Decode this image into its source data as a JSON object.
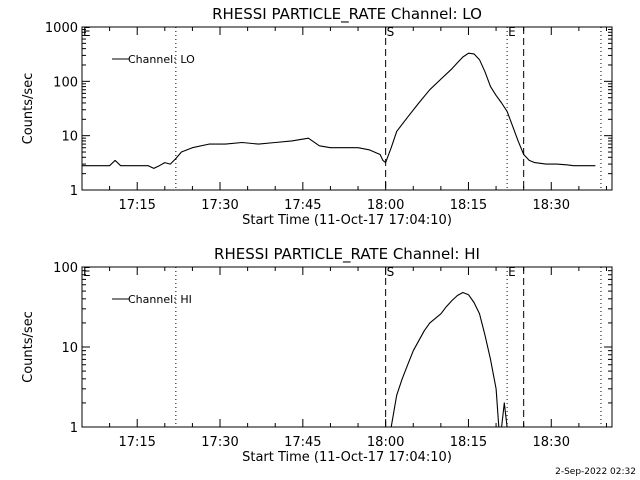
{
  "footer": {
    "timestamp": "2-Sep-2022 02:32"
  },
  "chart_data": [
    {
      "type": "line",
      "title": "RHESSI PARTICLE_RATE Channel: LO",
      "xlabel": "Start Time (11-Oct-17 17:04:10)",
      "ylabel": "Counts/sec",
      "xlim": [
        "17:05",
        "18:41"
      ],
      "ylim": [
        1,
        1000
      ],
      "yscale": "log",
      "xticks": [
        "17:15",
        "17:30",
        "17:45",
        "18:00",
        "18:15",
        "18:30"
      ],
      "yticks": [
        "1",
        "10",
        "100",
        "1000"
      ],
      "legend": {
        "position": "top-left",
        "entries": [
          "Channel: LO"
        ]
      },
      "markers": [
        {
          "label": "E",
          "time": "17:05"
        },
        {
          "label": "S",
          "time": "18:00"
        },
        {
          "label": "E",
          "time": "18:22"
        }
      ],
      "dotted_lines": [
        "17:22",
        "18:22",
        "18:39"
      ],
      "dashed_lines": [
        "18:00",
        "18:25"
      ],
      "series": [
        {
          "name": "Channel: LO",
          "x": [
            "17:05",
            "17:10",
            "17:11",
            "17:12",
            "17:13",
            "17:15",
            "17:17",
            "17:18",
            "17:19",
            "17:20",
            "17:21",
            "17:22",
            "17:23",
            "17:25",
            "17:28",
            "17:31",
            "17:34",
            "17:37",
            "17:40",
            "17:43",
            "17:46",
            "17:48",
            "17:50",
            "17:52",
            "17:55",
            "17:57",
            "17:59",
            "17:59.5",
            "18:00",
            "18:01",
            "18:02",
            "18:04",
            "18:06",
            "18:08",
            "18:10",
            "18:12",
            "18:13",
            "18:14",
            "18:15",
            "18:16",
            "18:17",
            "18:18",
            "18:19",
            "18:20",
            "18:21",
            "18:22",
            "18:23",
            "18:24",
            "18:25",
            "18:26",
            "18:27",
            "18:29",
            "18:31",
            "18:33",
            "18:34",
            "18:36",
            "18:38"
          ],
          "y": [
            2.8,
            2.8,
            3.5,
            2.8,
            2.8,
            2.8,
            2.8,
            2.5,
            2.8,
            3.2,
            3.0,
            3.8,
            5.0,
            6.0,
            7.0,
            7.0,
            7.5,
            7.0,
            7.5,
            8.0,
            9.0,
            6.5,
            6.0,
            6.0,
            6.0,
            5.5,
            4.5,
            3.5,
            3.2,
            6.0,
            12,
            22,
            40,
            70,
            110,
            170,
            220,
            280,
            330,
            320,
            250,
            150,
            80,
            55,
            40,
            28,
            15,
            8,
            4.5,
            3.5,
            3.2,
            3.0,
            3.0,
            2.9,
            2.8,
            2.8,
            2.8
          ]
        }
      ]
    },
    {
      "type": "line",
      "title": "RHESSI PARTICLE_RATE Channel: HI",
      "xlabel": "Start Time (11-Oct-17 17:04:10)",
      "ylabel": "Counts/sec",
      "xlim": [
        "17:05",
        "18:41"
      ],
      "ylim": [
        1,
        100
      ],
      "yscale": "log",
      "xticks": [
        "17:15",
        "17:30",
        "17:45",
        "18:00",
        "18:15",
        "18:30"
      ],
      "yticks": [
        "1",
        "10",
        "100"
      ],
      "legend": {
        "position": "top-left",
        "entries": [
          "Channel: HI"
        ]
      },
      "markers": [
        {
          "label": "E",
          "time": "17:05"
        },
        {
          "label": "S",
          "time": "18:00"
        },
        {
          "label": "E",
          "time": "18:22"
        }
      ],
      "dotted_lines": [
        "17:22",
        "18:22",
        "18:39"
      ],
      "dashed_lines": [
        "18:00",
        "18:25"
      ],
      "series": [
        {
          "name": "Channel: HI",
          "x": [
            "18:01",
            "18:02",
            "18:03",
            "18:04",
            "18:05",
            "18:06",
            "18:07",
            "18:08",
            "18:10",
            "18:11",
            "18:12",
            "18:13",
            "18:14",
            "18:15",
            "18:16",
            "18:17",
            "18:18",
            "18:19",
            "18:20",
            "18:20.5",
            "18:21",
            "18:21.5",
            "18:22"
          ],
          "y": [
            1,
            2.5,
            4,
            6,
            9,
            12,
            16,
            20,
            26,
            32,
            38,
            44,
            48,
            45,
            36,
            26,
            14,
            7,
            3,
            1,
            1,
            2,
            1
          ]
        }
      ]
    }
  ]
}
